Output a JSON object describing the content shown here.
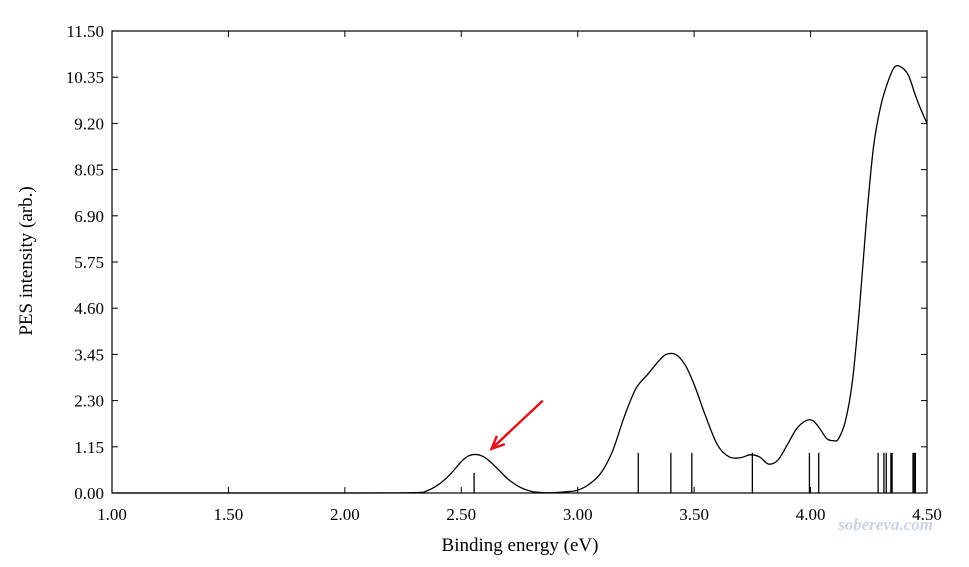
{
  "chart_data": {
    "type": "line",
    "title": "",
    "xlabel": "Binding energy (eV)",
    "ylabel": "PES intensity (arb.)",
    "xlim": [
      1.0,
      4.5
    ],
    "ylim": [
      0.0,
      11.5
    ],
    "x_ticks": [
      1.0,
      1.5,
      2.0,
      2.5,
      3.0,
      3.5,
      4.0,
      4.5
    ],
    "x_tick_labels": [
      "1.00",
      "1.50",
      "2.00",
      "2.50",
      "3.00",
      "3.50",
      "4.00",
      "4.50"
    ],
    "y_ticks": [
      0.0,
      1.15,
      2.3,
      3.45,
      4.6,
      5.75,
      6.9,
      8.05,
      9.2,
      10.35,
      11.5
    ],
    "y_tick_labels": [
      "0.00",
      "1.15",
      "2.30",
      "3.45",
      "4.60",
      "5.75",
      "6.90",
      "8.05",
      "9.20",
      "10.35",
      "11.50"
    ],
    "grid": false,
    "series": [
      {
        "x": [
          1.0,
          2.0,
          2.3,
          2.35,
          2.4,
          2.45,
          2.5,
          2.53,
          2.56,
          2.59,
          2.62,
          2.66,
          2.7,
          2.75,
          2.8,
          2.85,
          2.9,
          2.95,
          3.0,
          3.05,
          3.1,
          3.15,
          3.2,
          3.25,
          3.3,
          3.35,
          3.38,
          3.42,
          3.46,
          3.5,
          3.55,
          3.6,
          3.65,
          3.7,
          3.74,
          3.78,
          3.82,
          3.86,
          3.9,
          3.94,
          3.98,
          4.01,
          4.04,
          4.07,
          4.1,
          4.12,
          4.15,
          4.18,
          4.21,
          4.24,
          4.27,
          4.3,
          4.33,
          4.36,
          4.39,
          4.42,
          4.45,
          4.47,
          4.5
        ],
        "y": [
          0.0,
          0.0,
          0.01,
          0.05,
          0.2,
          0.45,
          0.78,
          0.92,
          0.96,
          0.92,
          0.8,
          0.58,
          0.35,
          0.15,
          0.04,
          0.01,
          0.01,
          0.03,
          0.07,
          0.22,
          0.5,
          1.05,
          1.9,
          2.6,
          2.95,
          3.3,
          3.45,
          3.45,
          3.2,
          2.7,
          1.9,
          1.2,
          0.9,
          0.88,
          0.95,
          0.9,
          0.72,
          0.82,
          1.2,
          1.6,
          1.8,
          1.8,
          1.6,
          1.35,
          1.3,
          1.35,
          1.8,
          2.8,
          4.6,
          6.8,
          8.6,
          9.6,
          10.2,
          10.6,
          10.6,
          10.4,
          9.9,
          9.6,
          9.2
        ]
      }
    ],
    "stick_lines": {
      "x": [
        2.555,
        3.26,
        3.4,
        3.49,
        3.75,
        3.995,
        4.035,
        4.29,
        4.315,
        4.325,
        4.345,
        4.35,
        4.44,
        4.445,
        4.45
      ],
      "height": [
        0.5,
        1.0,
        1.0,
        1.0,
        1.0,
        1.0,
        1.0,
        1.0,
        1.0,
        1.0,
        1.0,
        1.0,
        1.0,
        1.0,
        1.0
      ]
    },
    "annotation_arrow": {
      "label": "",
      "from": [
        2.85,
        2.3
      ],
      "to": [
        2.63,
        1.1
      ],
      "color": "#e0141a"
    },
    "watermark": "sobereva.com"
  }
}
